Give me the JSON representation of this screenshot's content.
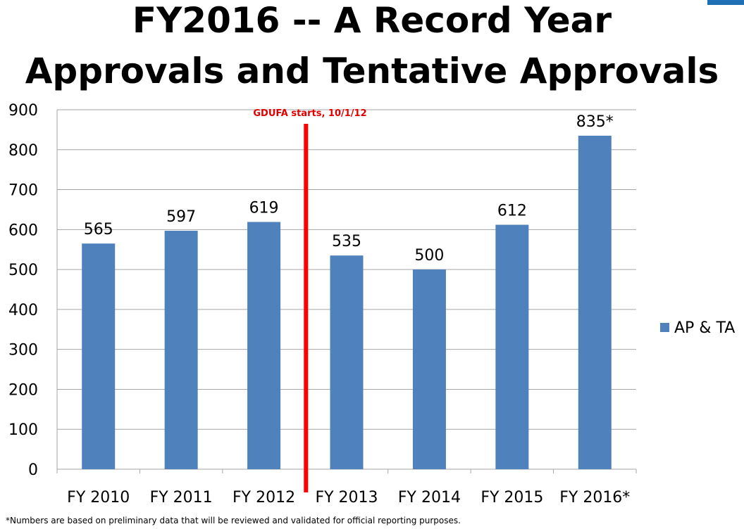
{
  "title_line1": "FY2016 -- A Record Year",
  "title_line2": "Approvals and Tentative Approvals",
  "footnote": "*Numbers are based on preliminary data that will be reviewed and validated for official reporting purposes.",
  "colors": {
    "bar": "#4f81bd",
    "marker_line": "#ff0000",
    "annotation": "#e00000",
    "grid": "#a6a6a6",
    "accent": "#1f6fb5"
  },
  "chart_data": {
    "type": "bar",
    "title": "FY2016 -- A Record Year Approvals and Tentative Approvals",
    "categories": [
      "FY 2010",
      "FY 2011",
      "FY 2012",
      "FY 2013",
      "FY 2014",
      "FY 2015",
      "FY 2016*"
    ],
    "series": [
      {
        "name": "AP & TA",
        "values": [
          565,
          597,
          619,
          535,
          500,
          612,
          835
        ]
      }
    ],
    "data_labels": [
      "565",
      "597",
      "619",
      "535",
      "500",
      "612",
      "835*"
    ],
    "ylim": [
      0,
      900
    ],
    "yticks": [
      0,
      100,
      200,
      300,
      400,
      500,
      600,
      700,
      800,
      900
    ],
    "grid": true,
    "legend_position": "right",
    "annotation": {
      "text": "GDUFA starts, 10/1/12",
      "between": [
        "FY 2012",
        "FY 2013"
      ]
    }
  }
}
